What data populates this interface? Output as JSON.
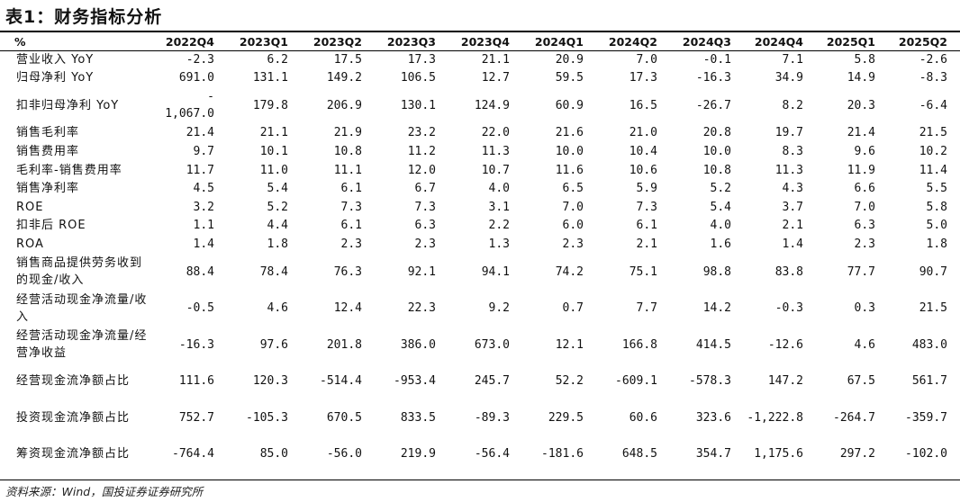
{
  "title": "表1：财务指标分析",
  "header": [
    "%",
    "2022Q4",
    "2023Q1",
    "2023Q2",
    "2023Q3",
    "2023Q4",
    "2024Q1",
    "2024Q2",
    "2024Q3",
    "2024Q4",
    "2025Q1",
    "2025Q2"
  ],
  "rows": [
    {
      "label": "营业收入 YoY",
      "values": [
        "-2.3",
        "6.2",
        "17.5",
        "17.3",
        "21.1",
        "20.9",
        "7.0",
        "-0.1",
        "7.1",
        "5.8",
        "-2.6"
      ]
    },
    {
      "label": "归母净利 YoY",
      "values": [
        "691.0",
        "131.1",
        "149.2",
        "106.5",
        "12.7",
        "59.5",
        "17.3",
        "-16.3",
        "34.9",
        "14.9",
        "-8.3"
      ]
    },
    {
      "label": "扣非归母净利 YoY",
      "values": [
        "- 1,067.0",
        "179.8",
        "206.9",
        "130.1",
        "124.9",
        "60.9",
        "16.5",
        "-26.7",
        "8.2",
        "20.3",
        "-6.4"
      ]
    },
    {
      "label": "销售毛利率",
      "values": [
        "21.4",
        "21.1",
        "21.9",
        "23.2",
        "22.0",
        "21.6",
        "21.0",
        "20.8",
        "19.7",
        "21.4",
        "21.5"
      ]
    },
    {
      "label": "销售费用率",
      "values": [
        "9.7",
        "10.1",
        "10.8",
        "11.2",
        "11.3",
        "10.0",
        "10.4",
        "10.0",
        "8.3",
        "9.6",
        "10.2"
      ]
    },
    {
      "label": "毛利率-销售费用率",
      "values": [
        "11.7",
        "11.0",
        "11.1",
        "12.0",
        "10.7",
        "11.6",
        "10.6",
        "10.8",
        "11.3",
        "11.9",
        "11.4"
      ]
    },
    {
      "label": "销售净利率",
      "values": [
        "4.5",
        "5.4",
        "6.1",
        "6.7",
        "4.0",
        "6.5",
        "5.9",
        "5.2",
        "4.3",
        "6.6",
        "5.5"
      ]
    },
    {
      "label": "ROE",
      "values": [
        "3.2",
        "5.2",
        "7.3",
        "7.3",
        "3.1",
        "7.0",
        "7.3",
        "5.4",
        "3.7",
        "7.0",
        "5.8"
      ]
    },
    {
      "label": "扣非后 ROE",
      "values": [
        "1.1",
        "4.4",
        "6.1",
        "6.3",
        "2.2",
        "6.0",
        "6.1",
        "4.0",
        "2.1",
        "6.3",
        "5.0"
      ]
    },
    {
      "label": "ROA",
      "values": [
        "1.4",
        "1.8",
        "2.3",
        "2.3",
        "1.3",
        "2.3",
        "2.1",
        "1.6",
        "1.4",
        "2.3",
        "1.8"
      ]
    },
    {
      "label": "销售商品提供劳务收到的现金/收入",
      "values": [
        "88.4",
        "78.4",
        "76.3",
        "92.1",
        "94.1",
        "74.2",
        "75.1",
        "98.8",
        "83.8",
        "77.7",
        "90.7"
      ]
    },
    {
      "label": "经营活动现金净流量/收入",
      "values": [
        "-0.5",
        "4.6",
        "12.4",
        "22.3",
        "9.2",
        "0.7",
        "7.7",
        "14.2",
        "-0.3",
        "0.3",
        "21.5"
      ]
    },
    {
      "label": "经营活动现金净流量/经营净收益",
      "values": [
        "-16.3",
        "97.6",
        "201.8",
        "386.0",
        "673.0",
        "12.1",
        "166.8",
        "414.5",
        "-12.6",
        "4.6",
        "483.0"
      ]
    },
    {
      "label": "经营现金流净额占比",
      "values": [
        "111.6",
        "120.3",
        "-514.4",
        "-953.4",
        "245.7",
        "52.2",
        "-609.1",
        "-578.3",
        "147.2",
        "67.5",
        "561.7"
      ]
    },
    {
      "label": "投资现金流净额占比",
      "values": [
        "752.7",
        "-105.3",
        "670.5",
        "833.5",
        "-89.3",
        "229.5",
        "60.6",
        "323.6",
        "-1,222.8",
        "-264.7",
        "-359.7"
      ]
    },
    {
      "label": "筹资现金流净额占比",
      "values": [
        "-764.4",
        "85.0",
        "-56.0",
        "219.9",
        "-56.4",
        "-181.6",
        "648.5",
        "354.7",
        "1,175.6",
        "297.2",
        "-102.0"
      ]
    }
  ],
  "source": "资料来源：Wind，国投证券证券研究所"
}
